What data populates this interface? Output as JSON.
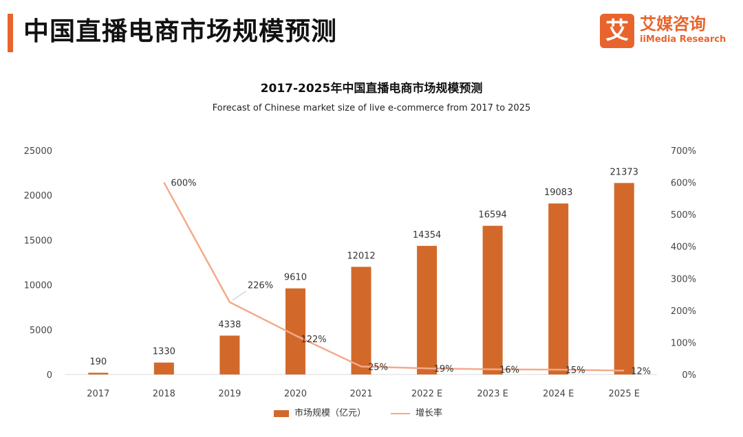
{
  "header": {
    "title": "中国直播电商市场规模预测"
  },
  "logo": {
    "mark": "艾",
    "name_cn": "艾媒咨询",
    "name_en": "iiMedia Research"
  },
  "colors": {
    "accent": "#E8642C",
    "bar": "#D2692A",
    "line": "#F4A98A",
    "axis_text": "#444444"
  },
  "chart_data": {
    "type": "bar",
    "title": "2017-2025年中国直播电商市场规模预测",
    "subtitle": "Forecast of Chinese market size of live e-commerce from 2017 to 2025",
    "categories": [
      "2017",
      "2018",
      "2019",
      "2020",
      "2021",
      "2022 E",
      "2023 E",
      "2024 E",
      "2025 E"
    ],
    "series": [
      {
        "name": "市场规模（亿元）",
        "type": "bar",
        "axis": "left",
        "values": [
          190,
          1330,
          4338,
          9610,
          12012,
          14354,
          16594,
          19083,
          21373
        ],
        "labels": [
          "190",
          "1330",
          "4338",
          "9610",
          "12012",
          "14354",
          "16594",
          "19083",
          "21373"
        ]
      },
      {
        "name": "增长率",
        "type": "line",
        "axis": "right",
        "values": [
          null,
          600,
          226,
          122,
          25,
          19,
          16,
          15,
          12
        ],
        "labels": [
          "",
          "600%",
          "226%",
          "122%",
          "25%",
          "19%",
          "16%",
          "15%",
          "12%"
        ]
      }
    ],
    "y_left": {
      "range": [
        0,
        25000
      ],
      "ticks": [
        0,
        5000,
        10000,
        15000,
        20000,
        25000
      ],
      "tick_labels": [
        "0",
        "5000",
        "10000",
        "15000",
        "20000",
        "25000"
      ]
    },
    "y_right": {
      "range": [
        0,
        700
      ],
      "ticks": [
        0,
        100,
        200,
        300,
        400,
        500,
        600,
        700
      ],
      "tick_labels": [
        "0%",
        "100%",
        "200%",
        "300%",
        "400%",
        "500%",
        "600%",
        "700%"
      ]
    },
    "grid": false,
    "legend_position": "bottom"
  }
}
